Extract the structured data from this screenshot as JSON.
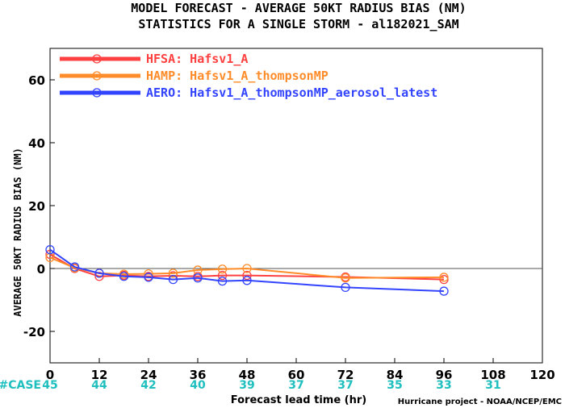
{
  "chart_data": {
    "type": "line",
    "title": "MODEL FORECAST - AVERAGE 50KT RADIUS BIAS (NM)",
    "subtitle": "STATISTICS FOR A SINGLE STORM - al182021_SAM",
    "xlabel": "Forecast lead time (hr)",
    "ylabel": "AVERAGE 50KT RADIUS BIAS (NM)",
    "xlim": [
      0,
      120
    ],
    "ylim": [
      -30,
      70
    ],
    "xticks": [
      0,
      12,
      24,
      36,
      48,
      60,
      72,
      84,
      96,
      108,
      120
    ],
    "yticks": [
      -20,
      0,
      20,
      40,
      60
    ],
    "zero_line": true,
    "legend_position": "top-left",
    "series": [
      {
        "name": "HFSA: Hafsv1_A",
        "color": "#ff4040",
        "x": [
          0,
          6,
          12,
          18,
          24,
          30,
          36,
          42,
          48,
          72,
          96
        ],
        "y": [
          4.5,
          0.0,
          -2.5,
          -2.2,
          -2.5,
          -2.3,
          -2.5,
          -2.2,
          -2.2,
          -2.7,
          -3.5
        ]
      },
      {
        "name": "HAMP: Hafsv1_A_thompsonMP",
        "color": "#ff8c2a",
        "x": [
          0,
          6,
          12,
          18,
          24,
          30,
          36,
          42,
          48,
          72,
          96
        ],
        "y": [
          3.5,
          0.2,
          -1.5,
          -1.8,
          -1.7,
          -1.5,
          -0.5,
          -0.2,
          0.0,
          -3.0,
          -2.8
        ]
      },
      {
        "name": "AERO: Hafsv1_A_thompsonMP_aerosol_latest",
        "color": "#3344ff",
        "x": [
          0,
          6,
          12,
          18,
          24,
          30,
          36,
          42,
          48,
          72,
          96
        ],
        "y": [
          6.0,
          0.5,
          -1.5,
          -2.5,
          -2.8,
          -3.5,
          -3.0,
          -4.0,
          -3.8,
          -6.0,
          -7.2
        ]
      }
    ],
    "cases": {
      "label": "#CASE",
      "x": [
        0,
        12,
        24,
        36,
        48,
        60,
        72,
        84,
        96,
        108
      ],
      "values": [
        "45",
        "44",
        "42",
        "40",
        "39",
        "37",
        "37",
        "35",
        "33",
        "31"
      ]
    },
    "case_color": "#1fbfbf"
  },
  "credit": "Hurricane project - NOAA/NCEP/EMC"
}
